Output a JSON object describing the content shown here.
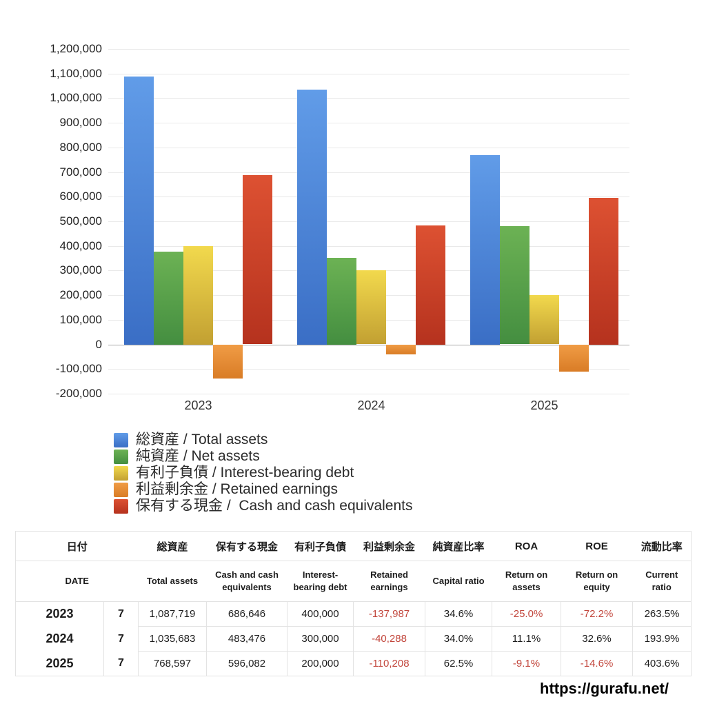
{
  "chart_data": {
    "type": "bar",
    "title": "",
    "xlabel": "",
    "ylabel": "",
    "categories": [
      "2023",
      "2024",
      "2025"
    ],
    "series": [
      {
        "name": "総資産 / Total assets",
        "slug": "total-assets",
        "color": "#4a82d8",
        "gradient": [
          "#619ce8",
          "#3a6ec5"
        ],
        "values": [
          1087719,
          1035683,
          768597
        ]
      },
      {
        "name": "純資産 / Net assets",
        "slug": "net-assets",
        "color": "#55a24a",
        "gradient": [
          "#6cb254",
          "#448e40"
        ],
        "values": [
          376000,
          352000,
          480000
        ]
      },
      {
        "name": "有利子負債 / Interest-bearing debt",
        "slug": "interest-bearing-debt",
        "color": "#ddc03e",
        "gradient": [
          "#f2d94d",
          "#c2a032"
        ],
        "values": [
          400000,
          300000,
          200000
        ]
      },
      {
        "name": "利益剰余金 / Retained earnings",
        "slug": "retained-earnings",
        "color": "#e68c35",
        "gradient": [
          "#f09c45",
          "#d97c26"
        ],
        "values": [
          -137987,
          -40288,
          -110208
        ]
      },
      {
        "name": "保有する現金 /  Cash and cash equivalents",
        "slug": "cash-and-cash-equivalents",
        "color": "#c94128",
        "gradient": [
          "#dd5132",
          "#b5321e"
        ],
        "values": [
          686646,
          483476,
          596082
        ]
      }
    ],
    "ylim": [
      -200000,
      1200000
    ],
    "ytick_step": 100000,
    "grid": true,
    "legend_position": "below-chart-left"
  },
  "table": {
    "header_jp": [
      "日付",
      "総資産",
      "保有する現金",
      "有利子負債",
      "利益剰余金",
      "純資産比率",
      "ROA",
      "ROE",
      "流動比率"
    ],
    "header_en": [
      "DATE",
      "Total assets",
      "Cash and cash equivalents",
      "Interest-bearing debt",
      "Retained earnings",
      "Capital ratio",
      "Return on assets",
      "Return on equity",
      "Current ratio"
    ],
    "rows": [
      {
        "year": "2023",
        "month": "7",
        "values": [
          "1,087,719",
          "686,646",
          "400,000",
          "-137,987",
          "34.6%",
          "-25.0%",
          "-72.2%",
          "263.5%"
        ]
      },
      {
        "year": "2024",
        "month": "7",
        "values": [
          "1,035,683",
          "483,476",
          "300,000",
          "-40,288",
          "34.0%",
          "11.1%",
          "32.6%",
          "193.9%"
        ]
      },
      {
        "year": "2025",
        "month": "7",
        "values": [
          "768,597",
          "596,082",
          "200,000",
          "-110,208",
          "62.5%",
          "-9.1%",
          "-14.6%",
          "403.6%"
        ]
      }
    ],
    "negative_color": "#c2463c"
  },
  "footer": {
    "url": "https://gurafu.net/"
  }
}
